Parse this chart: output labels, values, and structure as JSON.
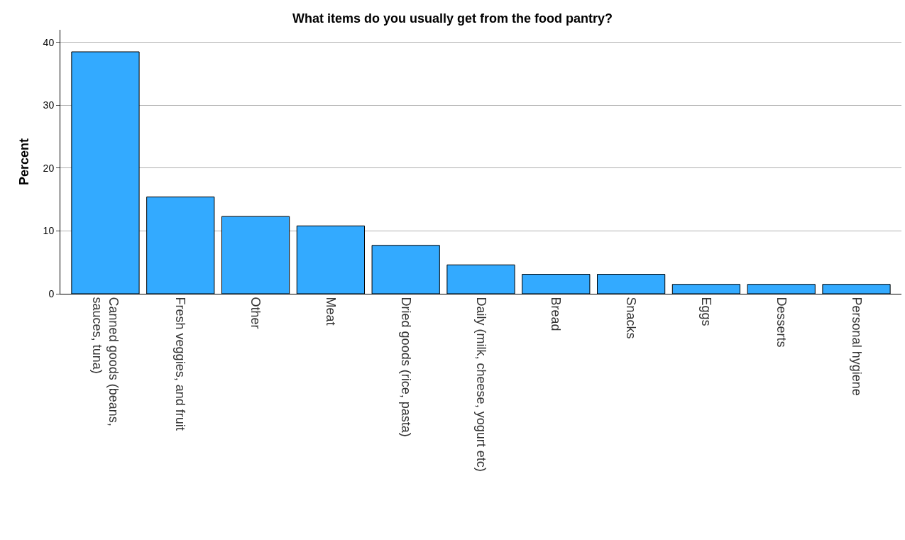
{
  "chart_data": {
    "type": "bar",
    "title": "What items do you usually get from the food pantry?",
    "ylabel": "Percent",
    "categories": [
      "Canned goods (beans,\nsauces, tuna)",
      "Fresh veggies, and fruit",
      "Other",
      "Meat",
      "Dried goods (rice, pasta)",
      "Daily (milk, cheese, yogurt etc)",
      "Bread",
      "Snacks",
      "Eggs",
      "Desserts",
      "Personal hygiene"
    ],
    "values": [
      38.5,
      15.4,
      12.3,
      10.8,
      7.7,
      4.6,
      3.1,
      3.1,
      1.5,
      1.5,
      1.5
    ],
    "color": "#33aaff",
    "ylim": [
      0,
      42
    ],
    "yticks": [
      0,
      10,
      20,
      30,
      40
    ],
    "grid": "y"
  }
}
